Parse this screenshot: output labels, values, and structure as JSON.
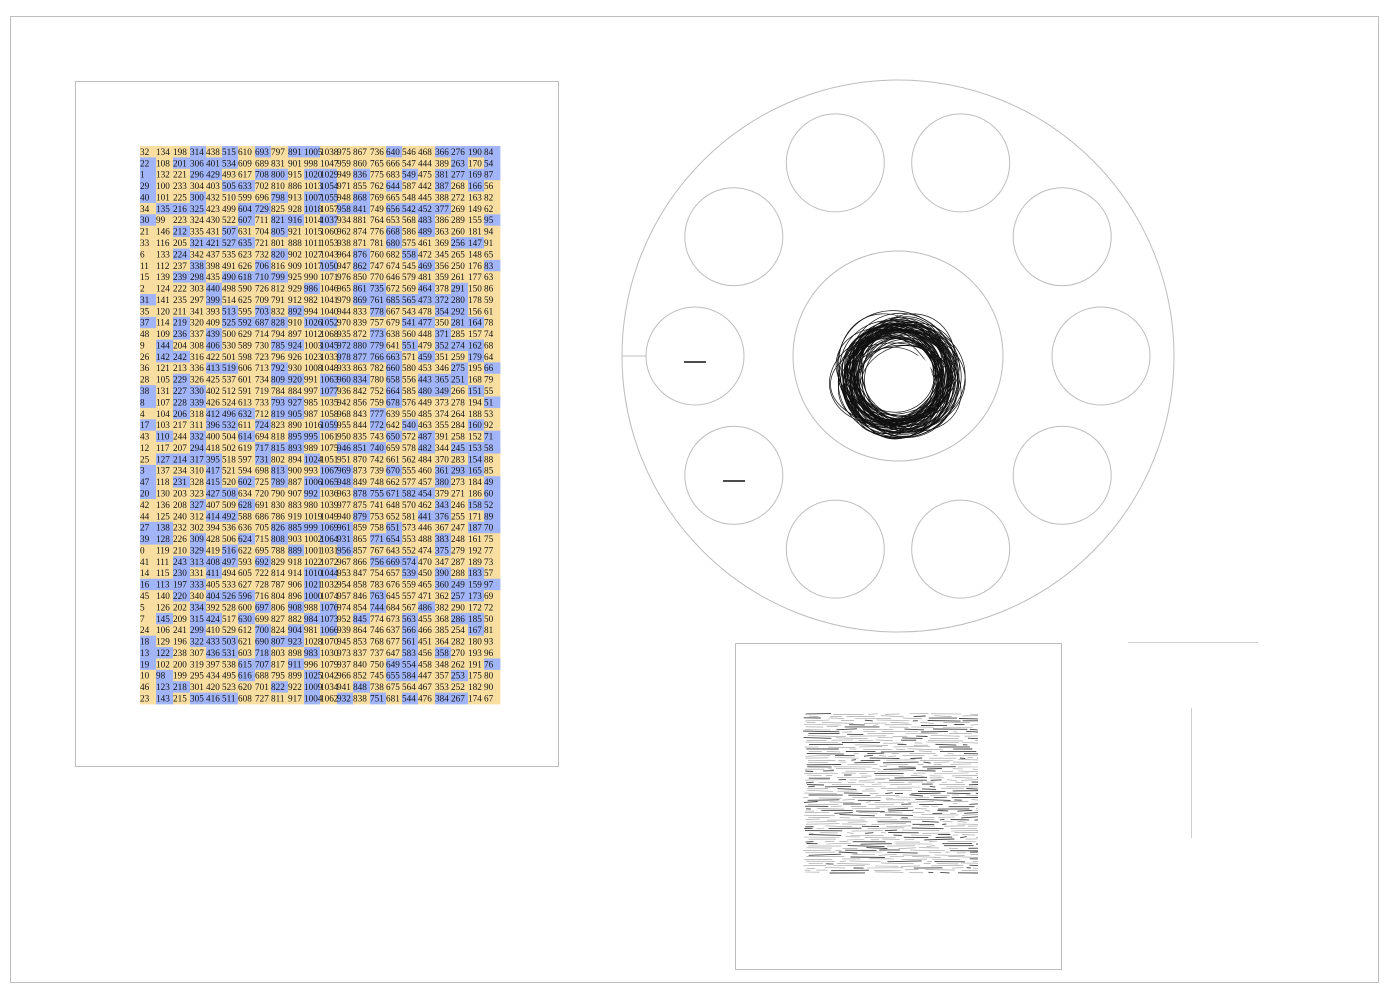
{
  "palette": {
    "yellow": "#f8dea1",
    "blue": "#a1b5f8",
    "ink": "#111111",
    "outline": "#bdbdbd"
  },
  "grid": {
    "rows": [
      [
        32,
        134,
        198,
        314,
        438,
        515,
        610,
        693,
        797,
        891,
        1005,
        1038,
        975,
        867,
        736,
        640,
        546,
        468,
        366,
        276,
        190,
        84
      ],
      [
        22,
        108,
        201,
        306,
        401,
        534,
        609,
        689,
        831,
        901,
        998,
        1047,
        959,
        860,
        765,
        666,
        547,
        444,
        389,
        263,
        170,
        54
      ],
      [
        1,
        132,
        221,
        296,
        429,
        493,
        617,
        708,
        800,
        915,
        1020,
        1029,
        949,
        836,
        775,
        683,
        549,
        475,
        381,
        277,
        169,
        87
      ],
      [
        29,
        100,
        233,
        304,
        403,
        505,
        633,
        702,
        810,
        886,
        1013,
        1054,
        971,
        855,
        762,
        644,
        587,
        442,
        387,
        268,
        166,
        56
      ],
      [
        40,
        101,
        225,
        300,
        432,
        510,
        599,
        696,
        798,
        913,
        1007,
        1055,
        948,
        868,
        769,
        665,
        548,
        445,
        388,
        272,
        163,
        82
      ],
      [
        34,
        135,
        216,
        325,
        423,
        499,
        604,
        729,
        825,
        928,
        1018,
        1057,
        958,
        841,
        749,
        656,
        542,
        452,
        377,
        269,
        149,
        62
      ],
      [
        30,
        99,
        223,
        324,
        430,
        522,
        607,
        711,
        821,
        916,
        1014,
        1037,
        934,
        881,
        764,
        653,
        568,
        483,
        386,
        289,
        155,
        95
      ],
      [
        21,
        146,
        212,
        335,
        431,
        507,
        631,
        704,
        805,
        921,
        1015,
        1060,
        962,
        874,
        776,
        668,
        586,
        489,
        363,
        260,
        181,
        94
      ],
      [
        33,
        116,
        205,
        321,
        421,
        527,
        635,
        721,
        801,
        888,
        1011,
        1053,
        938,
        871,
        781,
        680,
        575,
        461,
        369,
        256,
        147,
        91
      ],
      [
        6,
        133,
        224,
        342,
        437,
        535,
        623,
        732,
        820,
        902,
        1027,
        1043,
        964,
        876,
        760,
        682,
        558,
        472,
        345,
        265,
        148,
        65
      ],
      [
        11,
        112,
        237,
        338,
        398,
        491,
        626,
        706,
        816,
        909,
        1017,
        1050,
        947,
        862,
        747,
        674,
        545,
        469,
        356,
        250,
        176,
        83
      ],
      [
        15,
        139,
        239,
        298,
        435,
        490,
        618,
        710,
        799,
        925,
        990,
        1071,
        976,
        850,
        770,
        646,
        579,
        481,
        359,
        261,
        177,
        63
      ],
      [
        2,
        124,
        222,
        303,
        440,
        498,
        590,
        726,
        812,
        929,
        986,
        1046,
        965,
        861,
        735,
        672,
        569,
        464,
        378,
        291,
        150,
        86
      ],
      [
        31,
        141,
        235,
        297,
        399,
        514,
        625,
        709,
        791,
        912,
        982,
        1041,
        979,
        869,
        761,
        685,
        565,
        473,
        372,
        280,
        178,
        59
      ],
      [
        35,
        120,
        211,
        341,
        393,
        513,
        595,
        703,
        832,
        892,
        994,
        1040,
        944,
        833,
        778,
        667,
        543,
        478,
        354,
        292,
        156,
        61
      ],
      [
        37,
        114,
        219,
        320,
        409,
        525,
        592,
        687,
        828,
        910,
        1026,
        1052,
        970,
        839,
        757,
        679,
        541,
        477,
        350,
        281,
        164,
        78
      ],
      [
        48,
        109,
        236,
        337,
        439,
        500,
        629,
        714,
        794,
        897,
        1012,
        1068,
        935,
        872,
        773,
        638,
        560,
        448,
        371,
        285,
        157,
        74
      ],
      [
        9,
        144,
        204,
        308,
        406,
        530,
        589,
        730,
        785,
        924,
        1003,
        1045,
        972,
        880,
        779,
        641,
        551,
        479,
        352,
        274,
        162,
        68
      ],
      [
        26,
        142,
        242,
        316,
        422,
        501,
        598,
        723,
        796,
        926,
        1023,
        1033,
        978,
        877,
        766,
        663,
        571,
        459,
        351,
        259,
        179,
        64
      ],
      [
        36,
        121,
        213,
        336,
        413,
        519,
        606,
        713,
        792,
        930,
        1008,
        1048,
        933,
        863,
        782,
        660,
        580,
        453,
        346,
        275,
        195,
        66
      ],
      [
        28,
        105,
        229,
        326,
        425,
        537,
        601,
        734,
        809,
        920,
        991,
        1063,
        960,
        834,
        780,
        658,
        556,
        443,
        365,
        251,
        168,
        79
      ],
      [
        38,
        131,
        227,
        330,
        402,
        512,
        591,
        719,
        784,
        884,
        997,
        1077,
        936,
        842,
        752,
        664,
        585,
        480,
        349,
        266,
        151,
        55
      ],
      [
        8,
        107,
        228,
        339,
        426,
        524,
        613,
        733,
        793,
        927,
        985,
        1035,
        942,
        856,
        759,
        678,
        576,
        449,
        373,
        278,
        194,
        51
      ],
      [
        4,
        104,
        206,
        318,
        412,
        496,
        632,
        712,
        819,
        905,
        987,
        1058,
        968,
        843,
        777,
        639,
        550,
        485,
        374,
        264,
        188,
        53
      ],
      [
        17,
        103,
        217,
        311,
        396,
        532,
        611,
        724,
        823,
        890,
        1016,
        1059,
        955,
        844,
        772,
        642,
        540,
        463,
        355,
        284,
        160,
        92
      ],
      [
        43,
        110,
        244,
        332,
        400,
        504,
        614,
        694,
        818,
        895,
        995,
        1061,
        950,
        835,
        743,
        650,
        572,
        487,
        391,
        258,
        152,
        71
      ],
      [
        12,
        117,
        207,
        294,
        418,
        502,
        619,
        717,
        815,
        893,
        989,
        1075,
        946,
        851,
        740,
        659,
        578,
        482,
        344,
        245,
        153,
        58
      ],
      [
        25,
        127,
        214,
        317,
        395,
        518,
        597,
        731,
        802,
        894,
        1024,
        1051,
        951,
        870,
        742,
        661,
        562,
        484,
        370,
        283,
        154,
        88
      ],
      [
        3,
        137,
        234,
        310,
        417,
        521,
        594,
        698,
        813,
        900,
        993,
        1067,
        969,
        873,
        739,
        670,
        555,
        460,
        361,
        293,
        165,
        85
      ],
      [
        47,
        118,
        231,
        328,
        415,
        520,
        602,
        725,
        789,
        887,
        1006,
        1065,
        948,
        849,
        748,
        662,
        577,
        457,
        380,
        273,
        184,
        49
      ],
      [
        20,
        130,
        203,
        323,
        427,
        508,
        634,
        720,
        790,
        907,
        992,
        1036,
        963,
        878,
        755,
        671,
        582,
        454,
        379,
        271,
        186,
        60
      ],
      [
        42,
        136,
        208,
        327,
        407,
        509,
        628,
        691,
        830,
        883,
        980,
        1039,
        977,
        875,
        741,
        648,
        570,
        462,
        343,
        246,
        158,
        52
      ],
      [
        44,
        125,
        240,
        312,
        414,
        492,
        588,
        686,
        786,
        919,
        1019,
        1049,
        940,
        879,
        753,
        652,
        581,
        441,
        376,
        255,
        171,
        89
      ],
      [
        27,
        138,
        232,
        302,
        394,
        536,
        636,
        705,
        826,
        885,
        999,
        1069,
        961,
        859,
        758,
        651,
        573,
        446,
        367,
        247,
        187,
        70
      ],
      [
        39,
        128,
        226,
        309,
        428,
        506,
        624,
        715,
        808,
        903,
        1002,
        1064,
        931,
        865,
        771,
        654,
        553,
        488,
        383,
        248,
        161,
        75
      ],
      [
        0,
        119,
        210,
        329,
        419,
        516,
        622,
        695,
        788,
        889,
        1001,
        1031,
        956,
        857,
        767,
        643,
        552,
        474,
        375,
        279,
        192,
        77
      ],
      [
        41,
        111,
        243,
        313,
        408,
        497,
        593,
        692,
        829,
        918,
        1022,
        1072,
        967,
        866,
        756,
        669,
        574,
        470,
        347,
        287,
        189,
        73
      ],
      [
        14,
        115,
        230,
        331,
        411,
        494,
        605,
        722,
        814,
        914,
        1010,
        1044,
        953,
        847,
        754,
        657,
        539,
        450,
        390,
        288,
        183,
        57
      ],
      [
        16,
        113,
        197,
        333,
        405,
        533,
        627,
        728,
        787,
        906,
        1021,
        1032,
        954,
        858,
        783,
        676,
        559,
        465,
        360,
        249,
        159,
        97
      ],
      [
        45,
        140,
        220,
        340,
        404,
        526,
        596,
        716,
        804,
        896,
        1000,
        1074,
        957,
        846,
        763,
        645,
        557,
        471,
        362,
        257,
        173,
        69
      ],
      [
        5,
        126,
        202,
        334,
        392,
        528,
        600,
        697,
        806,
        908,
        988,
        1076,
        974,
        854,
        744,
        684,
        567,
        486,
        382,
        290,
        172,
        72
      ],
      [
        7,
        145,
        209,
        315,
        424,
        517,
        630,
        699,
        827,
        882,
        984,
        1073,
        952,
        845,
        774,
        673,
        563,
        455,
        368,
        286,
        185,
        50
      ],
      [
        24,
        106,
        241,
        299,
        410,
        529,
        612,
        700,
        824,
        904,
        981,
        1066,
        939,
        864,
        746,
        637,
        566,
        466,
        385,
        254,
        167,
        81
      ],
      [
        18,
        129,
        196,
        322,
        433,
        503,
        621,
        690,
        807,
        923,
        1028,
        1070,
        945,
        853,
        768,
        677,
        561,
        451,
        364,
        282,
        180,
        93
      ],
      [
        13,
        122,
        238,
        307,
        436,
        531,
        603,
        718,
        803,
        898,
        983,
        1030,
        973,
        837,
        737,
        647,
        583,
        456,
        358,
        270,
        193,
        96
      ],
      [
        19,
        102,
        200,
        319,
        397,
        538,
        615,
        707,
        817,
        911,
        996,
        1079,
        937,
        840,
        750,
        649,
        554,
        458,
        348,
        262,
        191,
        76
      ],
      [
        10,
        98,
        199,
        295,
        434,
        495,
        616,
        688,
        795,
        899,
        1025,
        1042,
        966,
        852,
        745,
        655,
        584,
        447,
        357,
        253,
        175,
        80
      ],
      [
        46,
        123,
        218,
        301,
        420,
        523,
        620,
        701,
        822,
        922,
        1009,
        1034,
        941,
        848,
        738,
        675,
        564,
        467,
        353,
        252,
        182,
        90
      ],
      [
        23,
        143,
        215,
        305,
        416,
        511,
        608,
        727,
        811,
        917,
        1004,
        1062,
        932,
        838,
        751,
        681,
        544,
        476,
        384,
        267,
        174,
        67
      ]
    ]
  },
  "wheel": {
    "outer_ring": "large-circle",
    "inner_ring": "hub-circle",
    "slot_count": 10,
    "dash_marks": 2
  },
  "scribble": {
    "pattern": "horizontal-strokes"
  }
}
